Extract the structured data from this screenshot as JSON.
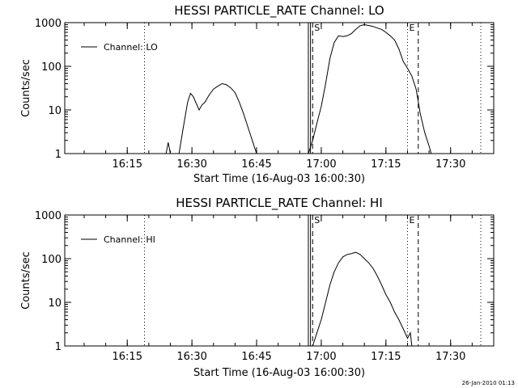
{
  "footer": {
    "timestamp": "26-Jan-2010 01:13"
  },
  "chart_data": [
    {
      "type": "line",
      "title": "HESSI PARTICLE_RATE Channel: LO",
      "xlabel": "Start Time (16-Aug-03 16:00:30)",
      "ylabel": "Counts/sec",
      "yscale": "log",
      "ylim": [
        1,
        1000
      ],
      "xlim": [
        "16:00:30",
        "17:40:00"
      ],
      "xticks": [
        "16:15",
        "16:30",
        "16:45",
        "17:00",
        "17:15",
        "17:30"
      ],
      "yticks": [
        "1",
        "10",
        "100",
        "1000"
      ],
      "grid": false,
      "legend": {
        "position": "top-left",
        "entries": [
          "Channel: LO"
        ]
      },
      "markers": [
        {
          "label": "",
          "time": "16:19:00",
          "style": "dotted"
        },
        {
          "label": "",
          "time": "16:57:00",
          "style": "solid"
        },
        {
          "label": "",
          "time": "16:57:30",
          "style": "solid"
        },
        {
          "label": "S",
          "time": "16:58:00",
          "style": "dashed"
        },
        {
          "label": "E",
          "time": "17:20:00",
          "style": "dotted"
        },
        {
          "label": "",
          "time": "17:22:30",
          "style": "dashed"
        },
        {
          "label": "",
          "time": "17:37:00",
          "style": "dotted"
        }
      ],
      "series": [
        {
          "name": "Channel: LO",
          "segments": [
            {
              "x": [
                "16:24:00",
                "16:24:30",
                "16:25:00"
              ],
              "y": [
                1,
                1.8,
                1
              ]
            },
            {
              "x": [
                "16:27:00",
                "16:28:00",
                "16:29:00",
                "16:29:40",
                "16:30:20",
                "16:31:00",
                "16:31:40",
                "16:32:20",
                "16:33:00",
                "16:34:00",
                "16:35:00",
                "16:36:00",
                "16:37:00",
                "16:38:00",
                "16:39:00",
                "16:40:00",
                "16:41:00",
                "16:42:00",
                "16:43:00",
                "16:44:00",
                "16:45:00"
              ],
              "y": [
                1,
                4,
                15,
                24,
                20,
                14,
                10,
                13,
                15,
                22,
                30,
                35,
                40,
                38,
                32,
                25,
                15,
                8,
                4,
                2,
                1
              ]
            },
            {
              "x": [
                "16:57:00",
                "16:58:00",
                "16:59:00",
                "17:00:00",
                "17:01:00",
                "17:02:00",
                "17:03:00",
                "17:04:00",
                "17:05:00",
                "17:06:00",
                "17:07:00",
                "17:08:00",
                "17:09:00",
                "17:10:00",
                "17:11:00",
                "17:12:00",
                "17:13:00",
                "17:14:00",
                "17:15:00",
                "17:16:00",
                "17:17:00",
                "17:18:00",
                "17:19:00",
                "17:20:00",
                "17:21:00",
                "17:22:00",
                "17:23:00",
                "17:24:00",
                "17:25:00",
                "17:25:30"
              ],
              "y": [
                1,
                2,
                5,
                12,
                40,
                150,
                350,
                500,
                480,
                500,
                560,
                700,
                850,
                900,
                860,
                820,
                750,
                700,
                600,
                500,
                400,
                250,
                130,
                90,
                60,
                30,
                8,
                3,
                1.5,
                1
              ]
            }
          ]
        }
      ]
    },
    {
      "type": "line",
      "title": "HESSI PARTICLE_RATE Channel: HI",
      "xlabel": "Start Time (16-Aug-03 16:00:30)",
      "ylabel": "Counts/sec",
      "yscale": "log",
      "ylim": [
        1,
        1000
      ],
      "xlim": [
        "16:00:30",
        "17:40:00"
      ],
      "xticks": [
        "16:15",
        "16:30",
        "16:45",
        "17:00",
        "17:15",
        "17:30"
      ],
      "yticks": [
        "1",
        "10",
        "100",
        "1000"
      ],
      "grid": false,
      "legend": {
        "position": "top-left",
        "entries": [
          "Channel: HI"
        ]
      },
      "markers": [
        {
          "label": "",
          "time": "16:19:00",
          "style": "dotted"
        },
        {
          "label": "",
          "time": "16:57:00",
          "style": "solid"
        },
        {
          "label": "",
          "time": "16:57:30",
          "style": "solid"
        },
        {
          "label": "S",
          "time": "16:58:00",
          "style": "dashed"
        },
        {
          "label": "E",
          "time": "17:20:00",
          "style": "dotted"
        },
        {
          "label": "",
          "time": "17:22:30",
          "style": "dashed"
        },
        {
          "label": "",
          "time": "17:37:00",
          "style": "dotted"
        }
      ],
      "series": [
        {
          "name": "Channel: HI",
          "segments": [
            {
              "x": [
                "16:58:00",
                "16:59:00",
                "17:00:00",
                "17:01:00",
                "17:02:00",
                "17:03:00",
                "17:04:00",
                "17:05:00",
                "17:06:00",
                "17:07:00",
                "17:08:00",
                "17:09:00",
                "17:10:00",
                "17:11:00",
                "17:12:00",
                "17:13:00",
                "17:14:00",
                "17:15:00",
                "17:16:00",
                "17:17:00",
                "17:18:00",
                "17:19:00",
                "17:20:00",
                "17:20:40",
                "17:21:00"
              ],
              "y": [
                1,
                2,
                4,
                10,
                25,
                50,
                80,
                110,
                125,
                130,
                140,
                125,
                100,
                80,
                60,
                40,
                25,
                15,
                10,
                6,
                4,
                2.5,
                1.5,
                2,
                1
              ]
            }
          ]
        }
      ]
    }
  ]
}
